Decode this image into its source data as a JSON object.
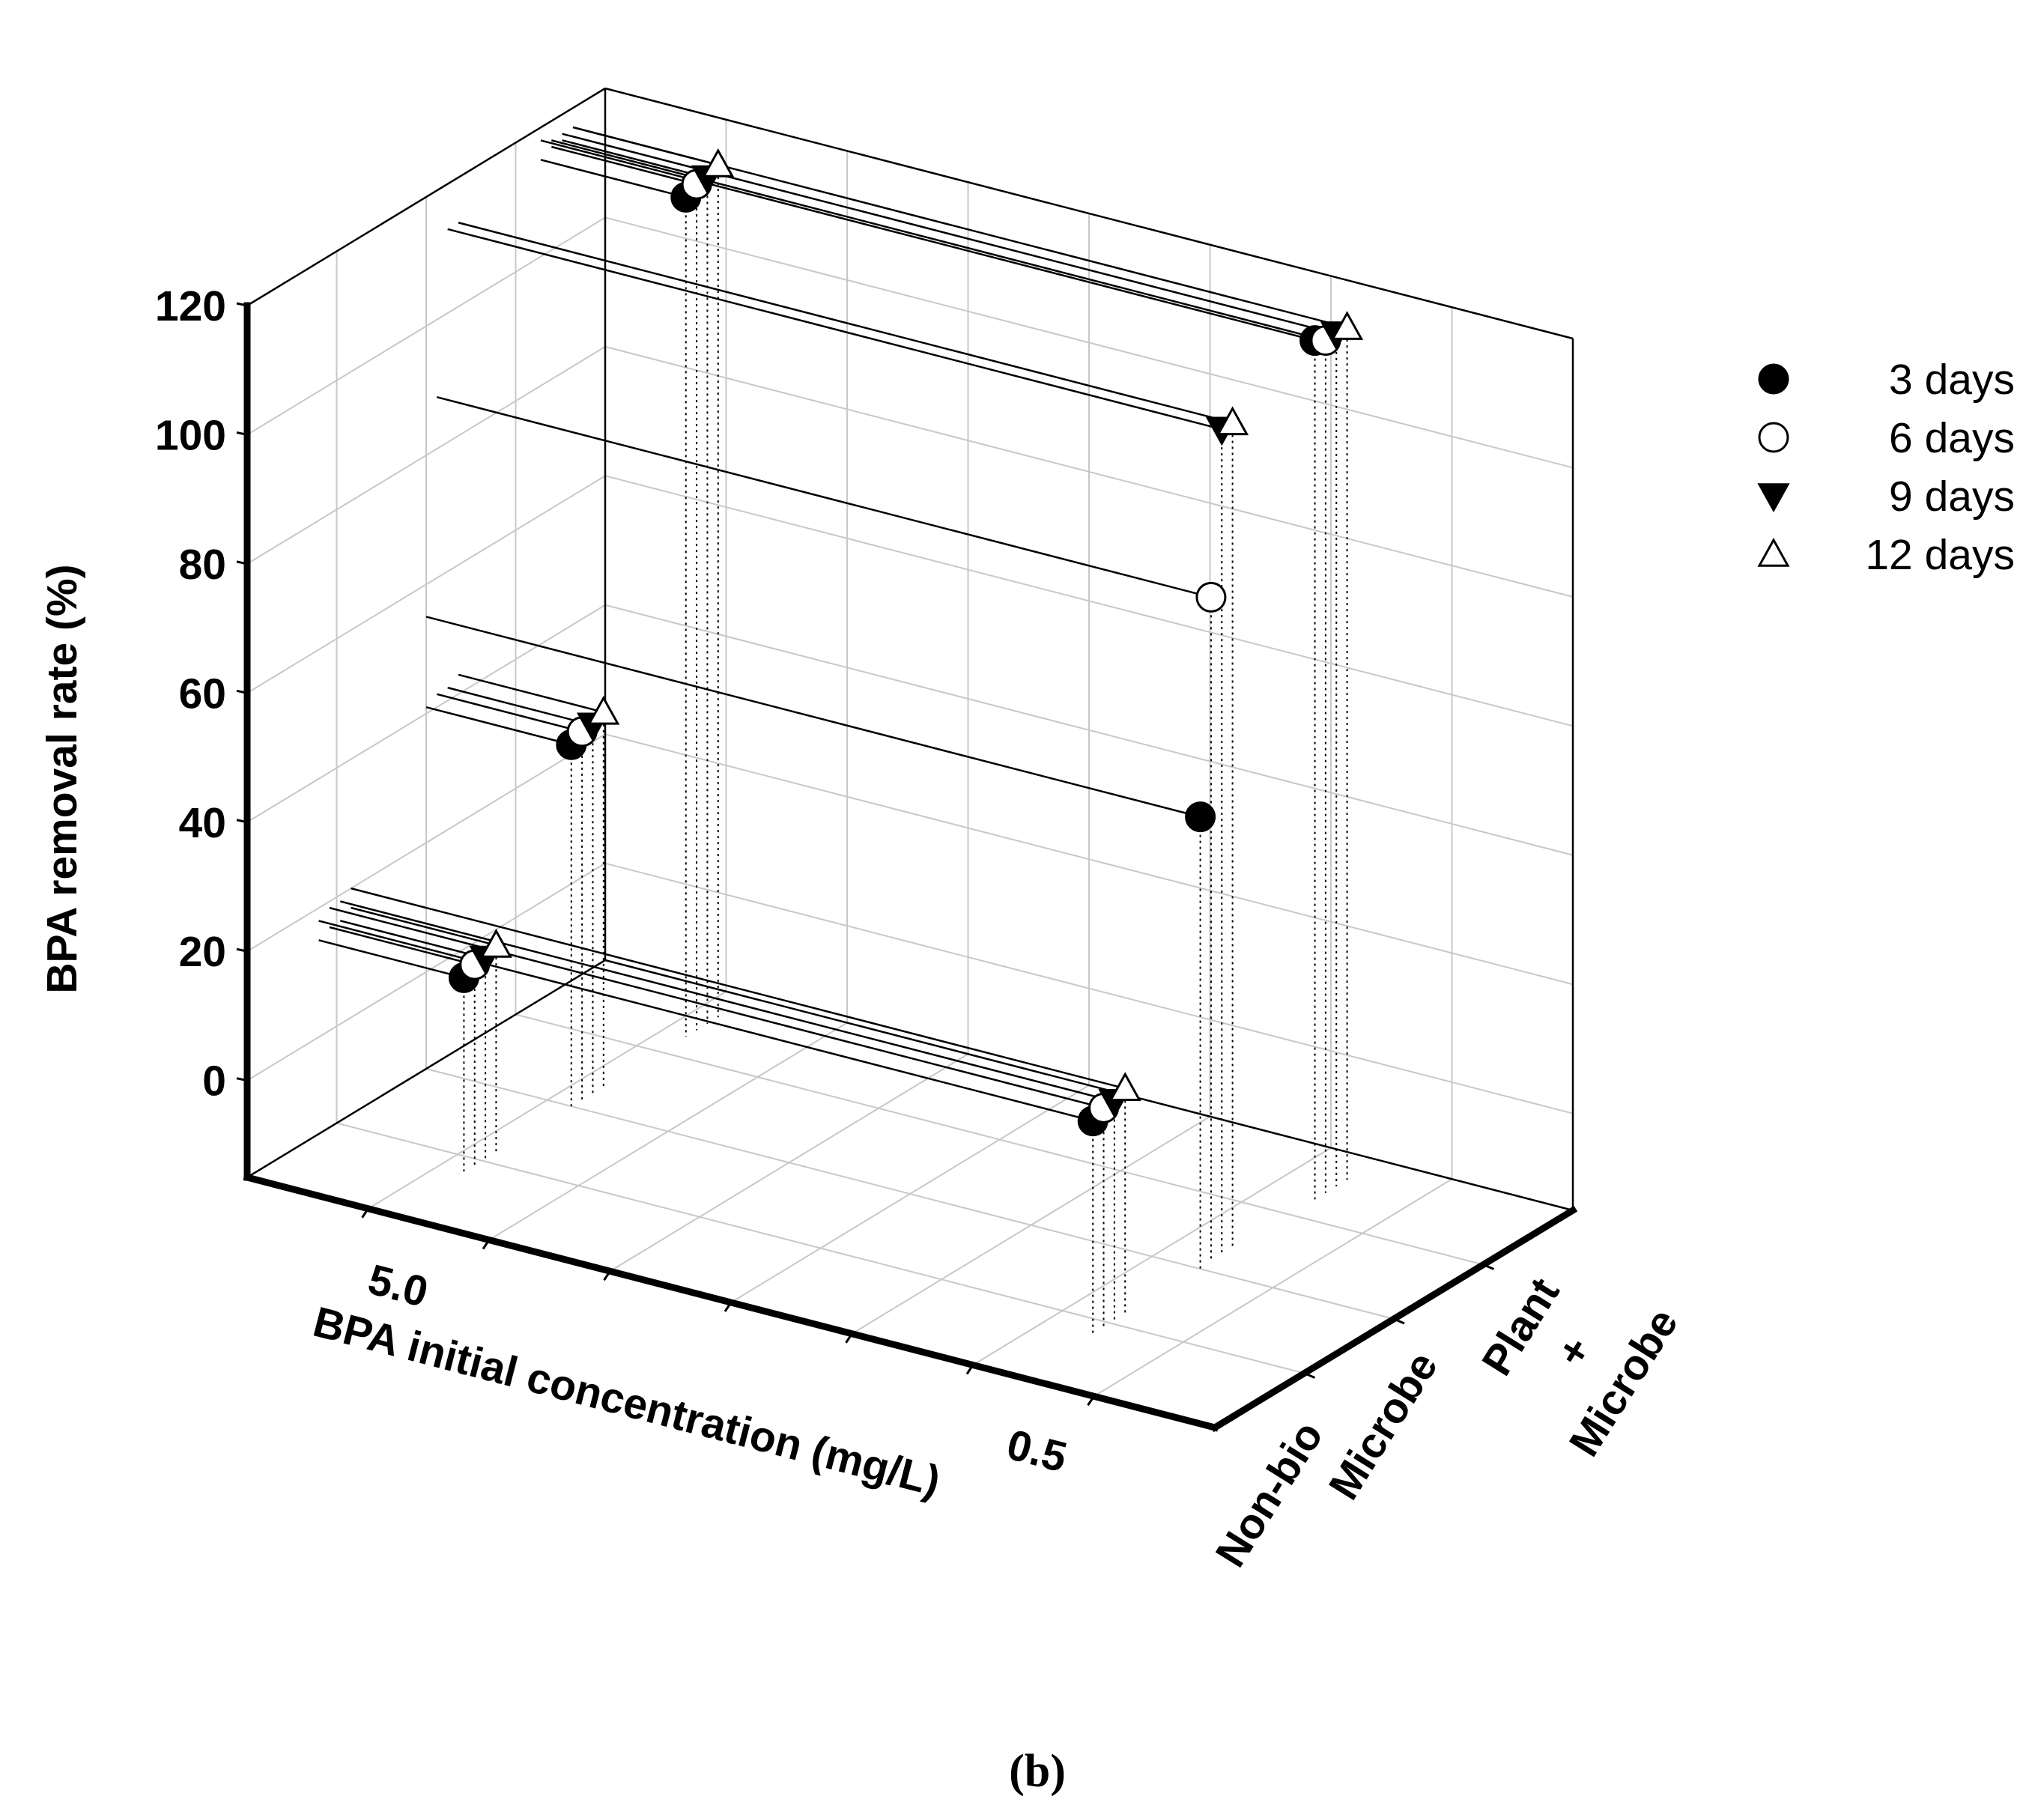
{
  "chart_data": {
    "type": "scatter3d",
    "caption": "(b)",
    "xlabel": "BPA initial concentration (mg/L)",
    "ylabel": "BPA removal rate (%)",
    "zlabel": "",
    "x_ticks": [
      "5.0",
      "0.5"
    ],
    "y_ticks": [
      "Non-bio",
      "Microbe",
      "Plant\n+\nMicrobe"
    ],
    "z_ticks": [
      "0",
      "20",
      "40",
      "60",
      "80",
      "100",
      "120"
    ],
    "zlim": [
      -15,
      120
    ],
    "legend": {
      "position": "right",
      "items": [
        {
          "label": "3  days",
          "marker": "filled-circle"
        },
        {
          "label": "6  days",
          "marker": "open-circle"
        },
        {
          "label": "9  days",
          "marker": "filled-triangle-down"
        },
        {
          "label": "12 days",
          "marker": "open-triangle-up"
        }
      ]
    },
    "series": [
      {
        "name": "3  days",
        "marker": "filled-circle",
        "points": [
          {
            "x": "5.0",
            "y": "Non-bio",
            "z": 15
          },
          {
            "x": "0.5",
            "y": "Non-bio",
            "z": 18
          },
          {
            "x": "5.0",
            "y": "Microbe",
            "z": 41
          },
          {
            "x": "0.5",
            "y": "Microbe",
            "z": 55
          },
          {
            "x": "5.0",
            "y": "Plant + Microbe",
            "z": 115
          },
          {
            "x": "0.5",
            "y": "Plant + Microbe",
            "z": 118
          }
        ]
      },
      {
        "name": "6  days",
        "marker": "open-circle",
        "points": [
          {
            "x": "5.0",
            "y": "Non-bio",
            "z": 16
          },
          {
            "x": "0.5",
            "y": "Non-bio",
            "z": 19
          },
          {
            "x": "5.0",
            "y": "Microbe",
            "z": 42
          },
          {
            "x": "0.5",
            "y": "Microbe",
            "z": 88
          },
          {
            "x": "5.0",
            "y": "Plant + Microbe",
            "z": 116
          },
          {
            "x": "0.5",
            "y": "Plant + Microbe",
            "z": 117
          }
        ]
      },
      {
        "name": "9  days",
        "marker": "filled-triangle-down",
        "points": [
          {
            "x": "5.0",
            "y": "Non-bio",
            "z": 16
          },
          {
            "x": "0.5",
            "y": "Non-bio",
            "z": 19
          },
          {
            "x": "5.0",
            "y": "Microbe",
            "z": 42
          },
          {
            "x": "0.5",
            "y": "Microbe",
            "z": 113
          },
          {
            "x": "5.0",
            "y": "Plant + Microbe",
            "z": 116
          },
          {
            "x": "0.5",
            "y": "Plant + Microbe",
            "z": 117
          }
        ]
      },
      {
        "name": "12 days",
        "marker": "open-triangle-up",
        "points": [
          {
            "x": "5.0",
            "y": "Non-bio",
            "z": 17
          },
          {
            "x": "0.5",
            "y": "Non-bio",
            "z": 20
          },
          {
            "x": "5.0",
            "y": "Microbe",
            "z": 43
          },
          {
            "x": "0.5",
            "y": "Microbe",
            "z": 113
          },
          {
            "x": "5.0",
            "y": "Plant + Microbe",
            "z": 117
          },
          {
            "x": "0.5",
            "y": "Plant + Microbe",
            "z": 117
          }
        ]
      }
    ]
  }
}
